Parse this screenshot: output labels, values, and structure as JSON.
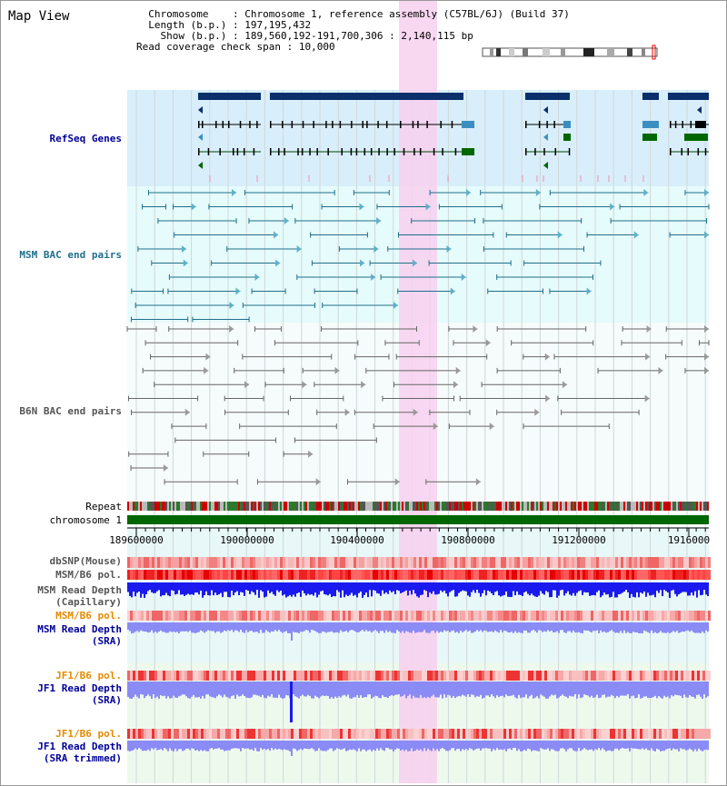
{
  "title": "Map View",
  "info": {
    "chromosome_label": "Chromosome",
    "chromosome_value": "Chromosome 1, reference assembly (C57BL/6J) (Build 37)",
    "length_label": "Length (b.p.)",
    "length_value": "197,195,432",
    "show_label": "Show (b.p.)",
    "show_value": "189,560,192-191,700,306 : 2,140,115 bp",
    "coverage_label": "Read coverage check span",
    "coverage_value": "10,000"
  },
  "tracks": {
    "refseq": "RefSeq Genes",
    "msm_bac": "MSM BAC end pairs",
    "b6n_bac": "B6N BAC end pairs",
    "repeat": "Repeat",
    "chromosome": "chromosome 1",
    "dbsnp": "dbSNP(Mouse)",
    "msm_b6_pol": "MSM/B6 pol.",
    "msm_depth_cap_1": "MSM Read Depth",
    "msm_depth_cap_2": "(Capillary)",
    "msm_b6_pol2": "MSM/B6 pol.",
    "msm_depth_sra_1": "MSM Read Depth",
    "msm_depth_sra_2": "(SRA)",
    "jf1_b6_pol": "JF1/B6 pol.",
    "jf1_depth_sra_1": "JF1 Read Depth",
    "jf1_depth_sra_2": "(SRA)",
    "jf1_b6_pol2": "JF1/B6 pol.",
    "jf1_depth_trim_1": "JF1 Read Depth",
    "jf1_depth_trim_2": "(SRA trimmed)"
  },
  "axis": {
    "ticks": [
      "189600000",
      "190000000",
      "190400000",
      "190800000",
      "191200000",
      "1916000"
    ]
  },
  "colors": {
    "refseq_bg": "#d9eefb",
    "msm_bg": "#e6fbfb",
    "gene": "#0a2f6b",
    "msm_line": "#1f6f8b",
    "b6n_line": "#666666",
    "highlight": "#f7d0ef",
    "chromosome": "#006600",
    "depth_blue": "#1a1aee",
    "depth_light": "#8b8bf5",
    "label_blue": "#000099",
    "label_orange": "#e68a00"
  }
}
